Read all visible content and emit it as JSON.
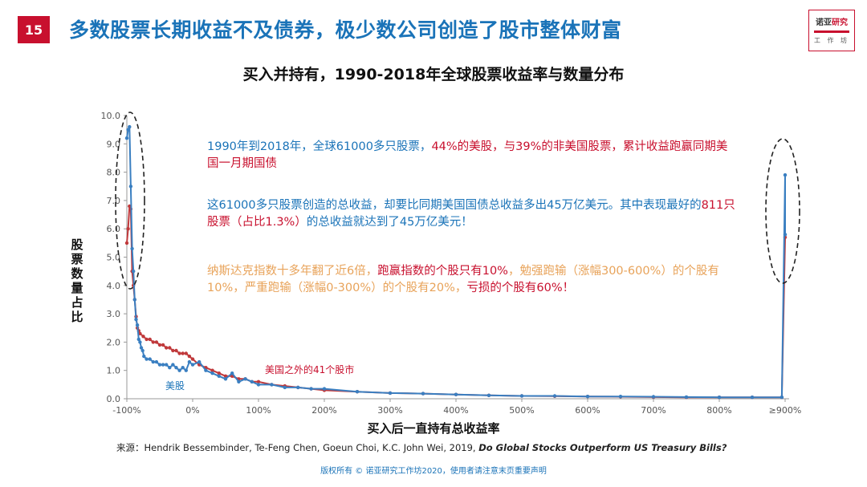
{
  "slide": {
    "number": "15",
    "title": "多数股票长期收益不及债券，极少数公司创造了股市整体财富"
  },
  "logo": {
    "line1_a": "诺亚",
    "line1_b": "研究",
    "line2": "工 作 坊"
  },
  "annotations": {
    "p1_a": "1990年到2018年，全球61000多只股票，",
    "p1_b": "44%的美股，与39%的非美国股票，累计收益跑赢同期美国一月期国债",
    "p2_a": "这61000多只股票创造的总收益，却要比同期美国国债总收益多出45万亿美元。其中表现最好的",
    "p2_b": "811只股票（占比1.3%）",
    "p2_c": "的总收益就达到了45万亿美元！",
    "p3_a": "纳斯达克指数十多年翻了近6倍，",
    "p3_b": "跑赢指数的个股只有10%",
    "p3_c": "，勉强跑输（涨幅300-600%）的个股有10%，严重跑输（涨幅0-300%）的个股有20%，",
    "p3_d": "亏损的个股有60%！"
  },
  "series_labels": {
    "us": "美股",
    "non_us": "美国之外的41个股市"
  },
  "source": {
    "prefix": "来源：Hendrik Bessembinder, Te-Feng Chen, Goeun Choi, K.C. John Wei, 2019, ",
    "title": "Do Global Stocks Outperform US Treasury Bills?"
  },
  "copyright": "版权所有 © 诺亚研究工作坊2020，使用者请注意末页重要声明",
  "colors": {
    "us": "#3a7fc1",
    "non_us": "#c0393b",
    "accent": "#c8102e",
    "title_blue": "#1a73b8"
  },
  "chart_data": {
    "type": "line",
    "title": "买入并持有，1990-2018年全球股票收益率与数量分布",
    "xlabel": "买入后一直持有总收益率",
    "ylabel": "股票数量占比",
    "ylim": [
      0,
      10
    ],
    "yticks": [
      "0.0",
      "1.0",
      "2.0",
      "3.0",
      "4.0",
      "5.0",
      "6.0",
      "7.0",
      "8.0",
      "9.0",
      "10.0"
    ],
    "xticks": [
      "-100%",
      "0%",
      "100%",
      "200%",
      "300%",
      "400%",
      "500%",
      "600%",
      "700%",
      "800%",
      "≥900%"
    ],
    "xlim": [
      -100,
      910
    ],
    "grid": false,
    "series": [
      {
        "name": "美股",
        "points": [
          [
            -100,
            9.2
          ],
          [
            -98,
            9.5
          ],
          [
            -96,
            9.6
          ],
          [
            -94,
            7.5
          ],
          [
            -92,
            5.3
          ],
          [
            -90,
            4.5
          ],
          [
            -88,
            3.5
          ],
          [
            -86,
            2.8
          ],
          [
            -84,
            2.6
          ],
          [
            -82,
            2.1
          ],
          [
            -80,
            2.0
          ],
          [
            -78,
            1.8
          ],
          [
            -76,
            1.7
          ],
          [
            -74,
            1.5
          ],
          [
            -70,
            1.4
          ],
          [
            -65,
            1.4
          ],
          [
            -60,
            1.3
          ],
          [
            -55,
            1.3
          ],
          [
            -50,
            1.2
          ],
          [
            -45,
            1.2
          ],
          [
            -40,
            1.2
          ],
          [
            -35,
            1.1
          ],
          [
            -30,
            1.2
          ],
          [
            -25,
            1.1
          ],
          [
            -20,
            1.0
          ],
          [
            -15,
            1.1
          ],
          [
            -10,
            1.0
          ],
          [
            -5,
            1.3
          ],
          [
            0,
            1.2
          ],
          [
            10,
            1.3
          ],
          [
            20,
            1.0
          ],
          [
            30,
            0.9
          ],
          [
            40,
            0.8
          ],
          [
            50,
            0.7
          ],
          [
            60,
            0.9
          ],
          [
            70,
            0.6
          ],
          [
            80,
            0.7
          ],
          [
            90,
            0.6
          ],
          [
            100,
            0.5
          ],
          [
            120,
            0.5
          ],
          [
            140,
            0.4
          ],
          [
            160,
            0.4
          ],
          [
            180,
            0.35
          ],
          [
            200,
            0.35
          ],
          [
            250,
            0.25
          ],
          [
            300,
            0.2
          ],
          [
            350,
            0.18
          ],
          [
            400,
            0.15
          ],
          [
            450,
            0.12
          ],
          [
            500,
            0.1
          ],
          [
            550,
            0.1
          ],
          [
            600,
            0.08
          ],
          [
            650,
            0.08
          ],
          [
            700,
            0.07
          ],
          [
            750,
            0.06
          ],
          [
            800,
            0.05
          ],
          [
            850,
            0.05
          ],
          [
            895,
            0.05
          ],
          [
            900,
            7.9
          ],
          [
            902,
            5.8
          ]
        ]
      },
      {
        "name": "美国之外的41个股市",
        "points": [
          [
            -100,
            5.5
          ],
          [
            -98,
            6.0
          ],
          [
            -96,
            6.8
          ],
          [
            -94,
            6.7
          ],
          [
            -92,
            4.5
          ],
          [
            -90,
            4.0
          ],
          [
            -88,
            3.5
          ],
          [
            -86,
            2.9
          ],
          [
            -84,
            2.5
          ],
          [
            -82,
            2.4
          ],
          [
            -80,
            2.3
          ],
          [
            -75,
            2.2
          ],
          [
            -70,
            2.1
          ],
          [
            -65,
            2.1
          ],
          [
            -60,
            2.0
          ],
          [
            -55,
            2.0
          ],
          [
            -50,
            1.9
          ],
          [
            -45,
            1.9
          ],
          [
            -40,
            1.8
          ],
          [
            -35,
            1.8
          ],
          [
            -30,
            1.7
          ],
          [
            -25,
            1.7
          ],
          [
            -20,
            1.6
          ],
          [
            -15,
            1.6
          ],
          [
            -10,
            1.6
          ],
          [
            -5,
            1.5
          ],
          [
            0,
            1.4
          ],
          [
            10,
            1.2
          ],
          [
            20,
            1.1
          ],
          [
            30,
            1.0
          ],
          [
            40,
            0.9
          ],
          [
            50,
            0.8
          ],
          [
            60,
            0.8
          ],
          [
            70,
            0.7
          ],
          [
            80,
            0.7
          ],
          [
            90,
            0.6
          ],
          [
            100,
            0.6
          ],
          [
            120,
            0.5
          ],
          [
            140,
            0.45
          ],
          [
            160,
            0.4
          ],
          [
            180,
            0.35
          ],
          [
            200,
            0.3
          ],
          [
            250,
            0.25
          ],
          [
            300,
            0.2
          ],
          [
            350,
            0.18
          ],
          [
            400,
            0.15
          ],
          [
            450,
            0.12
          ],
          [
            500,
            0.1
          ],
          [
            550,
            0.09
          ],
          [
            600,
            0.08
          ],
          [
            650,
            0.07
          ],
          [
            700,
            0.06
          ],
          [
            750,
            0.05
          ],
          [
            800,
            0.05
          ],
          [
            850,
            0.05
          ],
          [
            895,
            0.05
          ],
          [
            900,
            5.7
          ]
        ]
      }
    ],
    "annotations": [
      "highlight ellipse near -100%",
      "highlight ellipse near ≥900%"
    ]
  }
}
